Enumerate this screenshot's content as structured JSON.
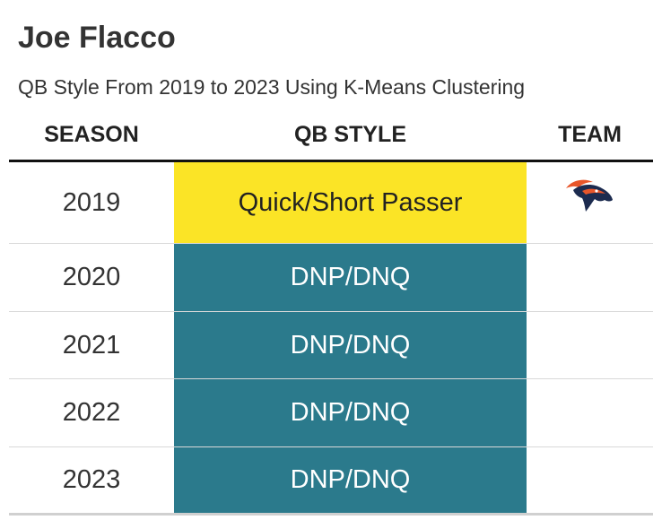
{
  "title": "Joe Flacco",
  "subtitle": "QB Style From 2019 to 2023 Using K-Means Clustering",
  "columns": {
    "season": "SEASON",
    "style": "QB STYLE",
    "team": "TEAM"
  },
  "colors": {
    "quick_short_passer": "#fbe426",
    "dnp_dnq": "#2b7a8c",
    "dark_text": "#222222",
    "light_text": "#ffffff",
    "broncos_orange": "#e8562a",
    "broncos_navy": "#1c2b4f"
  },
  "chart_data": {
    "type": "table",
    "title": "Joe Flacco",
    "subtitle": "QB Style From 2019 to 2023 Using K-Means Clustering",
    "columns": [
      "SEASON",
      "QB STYLE",
      "TEAM"
    ],
    "rows": [
      {
        "season": "2019",
        "style": "Quick/Short Passer",
        "team_icon": "broncos-logo-icon"
      },
      {
        "season": "2020",
        "style": "DNP/DNQ",
        "team_icon": ""
      },
      {
        "season": "2021",
        "style": "DNP/DNQ",
        "team_icon": ""
      },
      {
        "season": "2022",
        "style": "DNP/DNQ",
        "team_icon": ""
      },
      {
        "season": "2023",
        "style": "DNP/DNQ",
        "team_icon": ""
      }
    ]
  }
}
